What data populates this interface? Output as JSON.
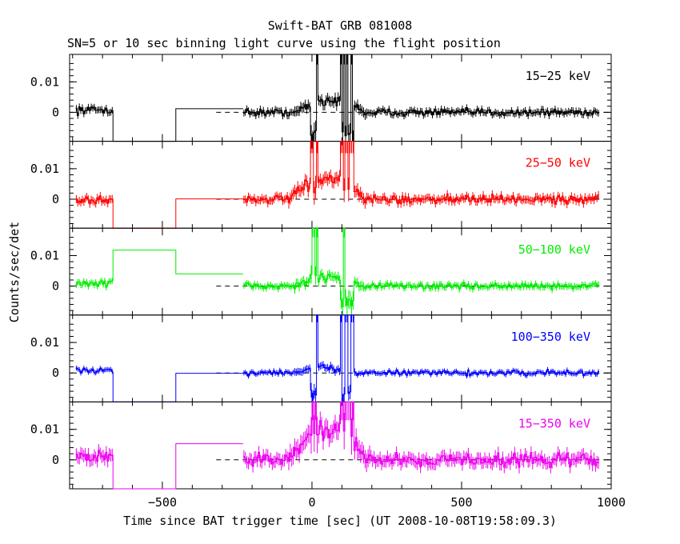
{
  "title": "Swift-BAT GRB 081008",
  "subtitle": "SN=5 or 10 sec binning light curve using the flight position",
  "chart_data": {
    "type": "line",
    "title": "Swift-BAT GRB 081008",
    "subtitle": "SN=5 or 10 sec binning light curve using the flight position",
    "xlabel": "Time since BAT trigger time [sec] (UT 2008-10-08T19:58:09.3)",
    "ylabel": "Counts/sec/det",
    "xlim": [
      -810,
      1000
    ],
    "ylim": [
      -0.0095,
      0.019
    ],
    "x_ticks": [
      -500,
      0,
      500,
      1000
    ],
    "x_tick_labels": [
      "−500",
      "0",
      "500",
      "1000"
    ],
    "y_ticks": [
      0,
      0.01
    ],
    "y_tick_labels": [
      "0",
      "0.01"
    ],
    "zero_line_start": -320,
    "gaps": [
      {
        "x0": -665,
        "x1": -455
      },
      {
        "x0": -455,
        "x1": -230
      }
    ],
    "panels": [
      {
        "band": "15−25 keV",
        "color": "#000000",
        "noise": 0.0011,
        "pre": {
          "x0": -790,
          "x1": -665,
          "level": 0.0008
        },
        "gap_levels": [
          -0.0095,
          0.0012
        ],
        "bursts": [
          {
            "x0": -5,
            "x1": 18,
            "h": 0.019,
            "lo": -0.0095
          },
          {
            "x0": 95,
            "x1": 135,
            "h": 0.019,
            "lo": -0.0095
          }
        ],
        "hump": {
          "x0": -60,
          "x1": 180,
          "h": 0.005
        }
      },
      {
        "band": "25−50 keV",
        "color": "#ff0000",
        "noise": 0.0013,
        "pre": {
          "x0": -790,
          "x1": -665,
          "level": -0.0003
        },
        "gap_levels": [
          -0.0095,
          0.0001
        ],
        "bursts": [
          {
            "x0": -5,
            "x1": 18,
            "h": 0.019,
            "lo": 0.002
          },
          {
            "x0": 95,
            "x1": 135,
            "h": 0.019,
            "lo": 0.002
          }
        ],
        "hump": {
          "x0": -80,
          "x1": 180,
          "h": 0.008
        }
      },
      {
        "band": "50−100 keV",
        "color": "#00ee00",
        "noise": 0.001,
        "pre": {
          "x0": -790,
          "x1": -665,
          "level": 0.0008
        },
        "gap_levels": [
          0.0118,
          0.004
        ],
        "bursts": [
          {
            "x0": -5,
            "x1": 18,
            "h": 0.019,
            "lo": 0.003
          },
          {
            "x0": 95,
            "x1": 135,
            "h": 0.019,
            "lo": -0.008
          }
        ],
        "hump": {
          "x0": -60,
          "x1": 170,
          "h": 0.004
        }
      },
      {
        "band": "100−350 keV",
        "color": "#0000ff",
        "noise": 0.0008,
        "pre": {
          "x0": -790,
          "x1": -665,
          "level": 0.0009
        },
        "gap_levels": [
          -0.0095,
          -0.0001
        ],
        "bursts": [
          {
            "x0": -5,
            "x1": 18,
            "h": 0.019,
            "lo": -0.0095
          },
          {
            "x0": 95,
            "x1": 135,
            "h": 0.019,
            "lo": -0.0095
          }
        ],
        "hump": {
          "x0": -60,
          "x1": 140,
          "h": 0.002
        }
      },
      {
        "band": "15−350 keV",
        "color": "#ee00ee",
        "noise": 0.002,
        "pre": {
          "x0": -790,
          "x1": -665,
          "level": 0.001
        },
        "gap_levels": [
          -0.0095,
          0.0053
        ],
        "bursts": [
          {
            "x0": -5,
            "x1": 18,
            "h": 0.019,
            "lo": 0.006
          },
          {
            "x0": 95,
            "x1": 135,
            "h": 0.019,
            "lo": 0.006
          }
        ],
        "hump": {
          "x0": -80,
          "x1": 190,
          "h": 0.012
        }
      }
    ],
    "post": {
      "x0": -230,
      "x1": 955
    },
    "grid": false,
    "legend": "none"
  }
}
